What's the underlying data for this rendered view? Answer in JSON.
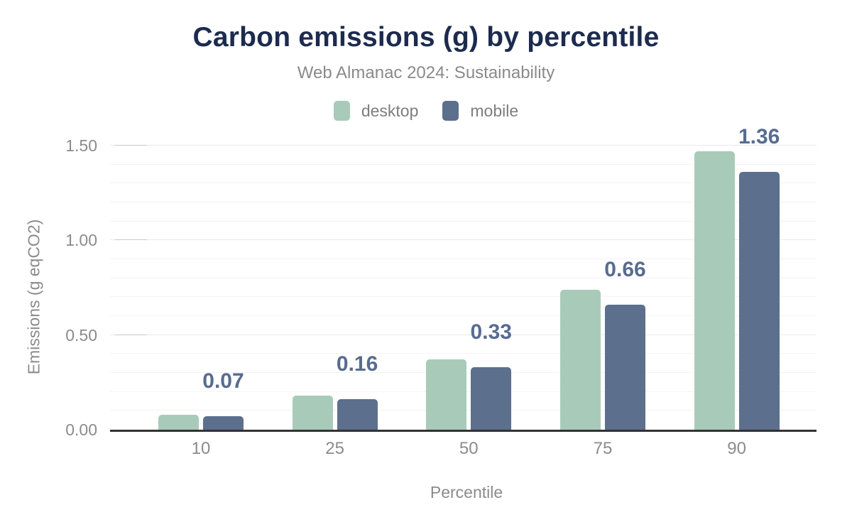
{
  "title": "Carbon emissions (g) by percentile",
  "subtitle": "Web Almanac 2024: Sustainability",
  "legend": [
    {
      "label": "desktop",
      "color": "#a8cbb9"
    },
    {
      "label": "mobile",
      "color": "#5c6f8d"
    }
  ],
  "colors": {
    "title": "#1c2b4e",
    "desktop_series": "#a8cbb9",
    "mobile_series": "#5c6f8d",
    "data_label": "#586c90",
    "muted_text": "#8b8b8b",
    "axis_line": "#333333"
  },
  "chart_data": {
    "type": "bar",
    "title": "Carbon emissions (g) by percentile",
    "subtitle": "Web Almanac 2024: Sustainability",
    "categories": [
      "10",
      "25",
      "50",
      "75",
      "90"
    ],
    "series": [
      {
        "name": "desktop",
        "color": "#a8cbb9",
        "values": [
          0.08,
          0.18,
          0.37,
          0.74,
          1.47
        ]
      },
      {
        "name": "mobile",
        "color": "#5c6f8d",
        "values": [
          0.07,
          0.16,
          0.33,
          0.66,
          1.36
        ]
      }
    ],
    "data_labels": {
      "series": "mobile",
      "values": [
        "0.07",
        "0.16",
        "0.33",
        "0.66",
        "1.36"
      ]
    },
    "xlabel": "Percentile",
    "ylabel": "Emissions (g eqCO2)",
    "ylim": [
      0,
      1.5
    ],
    "yticks": [
      {
        "label": "0.00",
        "value": 0.0
      },
      {
        "label": "0.50",
        "value": 0.5
      },
      {
        "label": "1.00",
        "value": 1.0
      },
      {
        "label": "1.50",
        "value": 1.5
      }
    ],
    "grid": {
      "minor_step": 0.1,
      "major_step": 0.5,
      "legend_position": "top"
    }
  }
}
